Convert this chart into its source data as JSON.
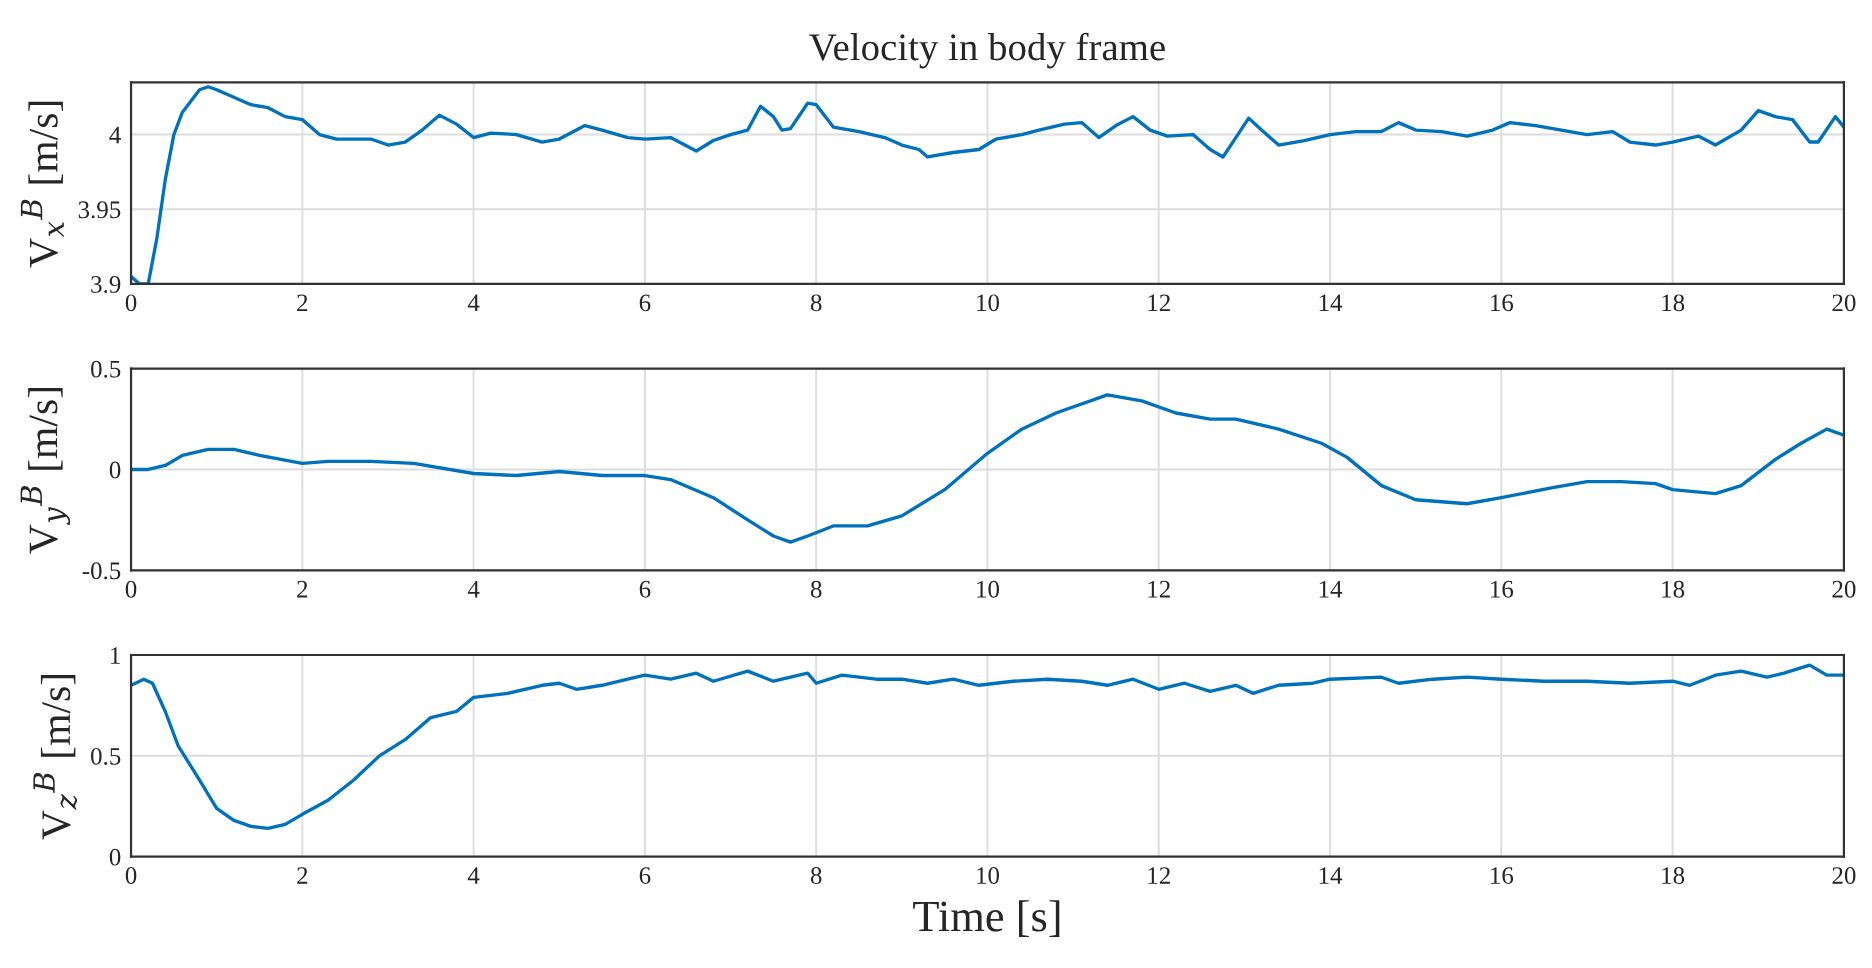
{
  "chart_data": [
    {
      "type": "line",
      "title": "Velocity in body frame",
      "ylabel": "V$_{x}$$^{B}$ [m/s]",
      "xlim": [
        0,
        20
      ],
      "xticks": [
        0,
        2,
        4,
        6,
        8,
        10,
        12,
        14,
        16,
        18,
        20
      ],
      "ylim": [
        3.9,
        4.035
      ],
      "yticks": [
        3.9,
        3.95,
        4
      ],
      "grid": true,
      "series": [
        {
          "color": "#0072bd",
          "x": [
            0,
            0.1,
            0.2,
            0.3,
            0.4,
            0.5,
            0.6,
            0.8,
            0.9,
            1.0,
            1.2,
            1.4,
            1.6,
            1.8,
            2.0,
            2.2,
            2.4,
            2.8,
            3.0,
            3.2,
            3.4,
            3.6,
            3.8,
            4.0,
            4.2,
            4.5,
            4.8,
            5.0,
            5.3,
            5.5,
            5.8,
            6.0,
            6.3,
            6.6,
            6.8,
            7.0,
            7.2,
            7.35,
            7.5,
            7.6,
            7.7,
            7.9,
            8.0,
            8.2,
            8.5,
            8.8,
            9.0,
            9.2,
            9.3,
            9.6,
            9.9,
            10.1,
            10.4,
            10.6,
            10.9,
            11.1,
            11.3,
            11.5,
            11.7,
            11.9,
            12.1,
            12.4,
            12.6,
            12.75,
            12.9,
            13.05,
            13.2,
            13.4,
            13.7,
            14.0,
            14.3,
            14.6,
            14.8,
            15.0,
            15.3,
            15.6,
            15.9,
            16.1,
            16.4,
            16.8,
            17.0,
            17.3,
            17.5,
            17.8,
            18.0,
            18.3,
            18.5,
            18.8,
            19.0,
            19.2,
            19.4,
            19.6,
            19.7,
            19.9,
            20
          ],
          "values": [
            3.905,
            3.9,
            3.9,
            3.93,
            3.97,
            4.0,
            4.015,
            4.03,
            4.032,
            4.03,
            4.025,
            4.02,
            4.018,
            4.012,
            4.01,
            4.0,
            3.997,
            3.997,
            3.993,
            3.995,
            4.003,
            4.013,
            4.007,
            3.998,
            4.001,
            4.0,
            3.995,
            3.997,
            4.006,
            4.003,
            3.998,
            3.997,
            3.998,
            3.989,
            3.996,
            4.0,
            4.003,
            4.019,
            4.012,
            4.003,
            4.004,
            4.021,
            4.02,
            4.005,
            4.002,
            3.998,
            3.993,
            3.99,
            3.985,
            3.988,
            3.99,
            3.997,
            4.0,
            4.003,
            4.007,
            4.008,
            3.998,
            4.006,
            4.012,
            4.003,
            3.999,
            4.0,
            3.99,
            3.985,
            3.998,
            4.011,
            4.003,
            3.993,
            3.996,
            4.0,
            4.002,
            4.002,
            4.008,
            4.003,
            4.002,
            3.999,
            4.003,
            4.008,
            4.006,
            4.002,
            4.0,
            4.002,
            3.995,
            3.993,
            3.995,
            3.999,
            3.993,
            4.003,
            4.016,
            4.012,
            4.01,
            3.995,
            3.995,
            4.012,
            4.005
          ]
        }
      ]
    },
    {
      "type": "line",
      "ylabel": "V$_{y}$$^{B}$ [m/s]",
      "xlim": [
        0,
        20
      ],
      "xticks": [
        0,
        2,
        4,
        6,
        8,
        10,
        12,
        14,
        16,
        18,
        20
      ],
      "ylim": [
        -0.5,
        0.5
      ],
      "yticks": [
        -0.5,
        0,
        0.5
      ],
      "grid": true,
      "series": [
        {
          "color": "#0072bd",
          "x": [
            0,
            0.2,
            0.4,
            0.6,
            0.9,
            1.2,
            1.5,
            2.0,
            2.3,
            2.8,
            3.3,
            4.0,
            4.5,
            5.0,
            5.5,
            6.0,
            6.3,
            6.8,
            7.2,
            7.5,
            7.7,
            7.9,
            8.2,
            8.6,
            9.0,
            9.5,
            10.0,
            10.4,
            10.8,
            11.4,
            11.8,
            12.2,
            12.6,
            12.9,
            13.4,
            13.9,
            14.2,
            14.6,
            15.0,
            15.6,
            16.0,
            16.6,
            17.0,
            17.4,
            17.8,
            18.0,
            18.5,
            18.8,
            19.2,
            19.5,
            19.8,
            20
          ],
          "values": [
            0,
            0,
            0.02,
            0.07,
            0.1,
            0.1,
            0.07,
            0.03,
            0.04,
            0.04,
            0.03,
            -0.02,
            -0.03,
            -0.01,
            -0.03,
            -0.03,
            -0.05,
            -0.14,
            -0.25,
            -0.33,
            -0.36,
            -0.33,
            -0.28,
            -0.28,
            -0.23,
            -0.1,
            0.08,
            0.2,
            0.28,
            0.37,
            0.34,
            0.28,
            0.25,
            0.25,
            0.2,
            0.13,
            0.06,
            -0.08,
            -0.15,
            -0.17,
            -0.14,
            -0.09,
            -0.06,
            -0.06,
            -0.07,
            -0.1,
            -0.12,
            -0.08,
            0.05,
            0.13,
            0.2,
            0.17
          ]
        }
      ]
    },
    {
      "type": "line",
      "xlabel": "Time [s]",
      "ylabel": "V$_{z}$$^{B}$ [m/s]",
      "xlim": [
        0,
        20
      ],
      "xticks": [
        0,
        2,
        4,
        6,
        8,
        10,
        12,
        14,
        16,
        18,
        20
      ],
      "ylim": [
        0,
        1
      ],
      "yticks": [
        0,
        0.5,
        1
      ],
      "grid": true,
      "series": [
        {
          "color": "#0072bd",
          "x": [
            0,
            0.15,
            0.25,
            0.4,
            0.55,
            0.8,
            1.0,
            1.2,
            1.4,
            1.6,
            1.8,
            2.0,
            2.3,
            2.6,
            2.9,
            3.2,
            3.5,
            3.8,
            4.0,
            4.4,
            4.8,
            5.0,
            5.2,
            5.5,
            5.8,
            6.0,
            6.3,
            6.6,
            6.8,
            7.2,
            7.5,
            7.9,
            8.0,
            8.3,
            8.7,
            9.0,
            9.3,
            9.6,
            9.9,
            10.3,
            10.7,
            11.1,
            11.4,
            11.7,
            12.0,
            12.3,
            12.6,
            12.9,
            13.1,
            13.4,
            13.8,
            14.0,
            14.6,
            14.8,
            15.2,
            15.6,
            16.0,
            16.5,
            17.0,
            17.5,
            18.0,
            18.2,
            18.5,
            18.8,
            19.1,
            19.3,
            19.6,
            19.8,
            20
          ],
          "values": [
            0.85,
            0.88,
            0.86,
            0.72,
            0.55,
            0.38,
            0.24,
            0.18,
            0.15,
            0.14,
            0.16,
            0.21,
            0.28,
            0.38,
            0.5,
            0.58,
            0.69,
            0.72,
            0.79,
            0.81,
            0.85,
            0.86,
            0.83,
            0.85,
            0.88,
            0.9,
            0.88,
            0.91,
            0.87,
            0.92,
            0.87,
            0.91,
            0.86,
            0.9,
            0.88,
            0.88,
            0.86,
            0.88,
            0.85,
            0.87,
            0.88,
            0.87,
            0.85,
            0.88,
            0.83,
            0.86,
            0.82,
            0.85,
            0.81,
            0.85,
            0.86,
            0.88,
            0.89,
            0.86,
            0.88,
            0.89,
            0.88,
            0.87,
            0.87,
            0.86,
            0.87,
            0.85,
            0.9,
            0.92,
            0.89,
            0.91,
            0.95,
            0.9,
            0.9
          ]
        }
      ]
    }
  ]
}
